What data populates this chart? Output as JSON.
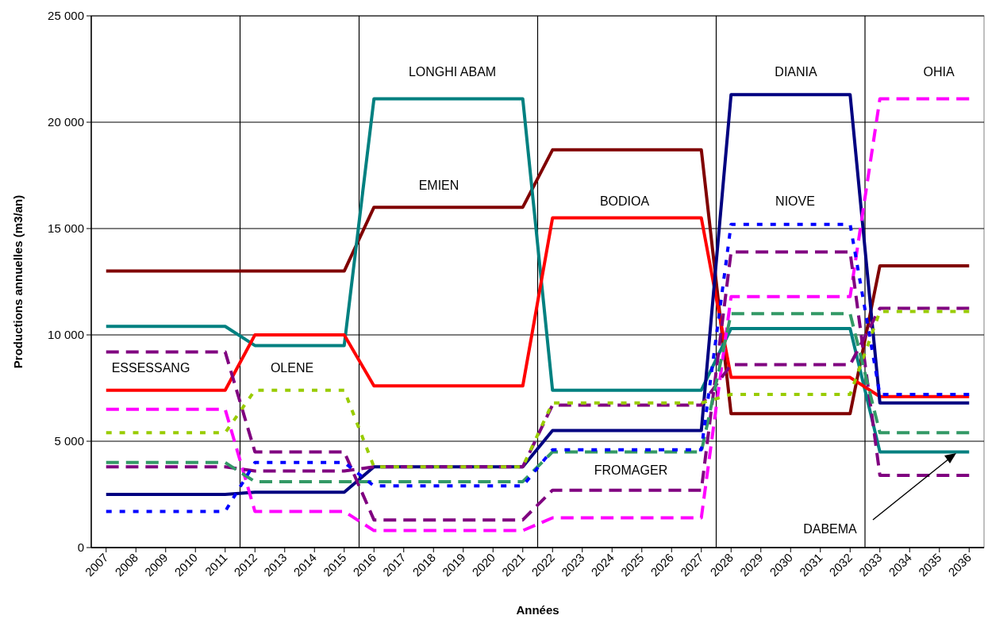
{
  "chart_data": {
    "type": "line",
    "xlabel": "Années",
    "ylabel": "Productions annuelles (m3/an)",
    "x": [
      2007,
      2008,
      2009,
      2010,
      2011,
      2012,
      2013,
      2014,
      2015,
      2016,
      2017,
      2018,
      2019,
      2020,
      2021,
      2022,
      2023,
      2024,
      2025,
      2026,
      2027,
      2028,
      2029,
      2030,
      2031,
      2032,
      2033,
      2034,
      2035,
      2036
    ],
    "xlim": [
      2006.5,
      2036.5
    ],
    "xticks": [
      2007,
      2008,
      2009,
      2010,
      2011,
      2012,
      2013,
      2014,
      2015,
      2016,
      2017,
      2018,
      2019,
      2020,
      2021,
      2022,
      2023,
      2024,
      2025,
      2026,
      2027,
      2028,
      2029,
      2030,
      2031,
      2032,
      2033,
      2034,
      2035,
      2036
    ],
    "ylim": [
      0,
      25000
    ],
    "yticks": [
      {
        "value": 0,
        "label": "0"
      },
      {
        "value": 5000,
        "label": "5 000"
      },
      {
        "value": 10000,
        "label": "10 000"
      },
      {
        "value": 15000,
        "label": "15 000"
      },
      {
        "value": 20000,
        "label": "20 000"
      },
      {
        "value": 25000,
        "label": "25 000"
      }
    ],
    "grid": "y",
    "marker": "none",
    "series": [
      {
        "color": "#800000",
        "line_style": "solid",
        "values": [
          13000,
          13000,
          13000,
          13000,
          13000,
          13000,
          13000,
          13000,
          13000,
          16000,
          16000,
          16000,
          16000,
          16000,
          16000,
          18700,
          18700,
          18700,
          18700,
          18700,
          18700,
          6300,
          6300,
          6300,
          6300,
          6300,
          13250,
          13250,
          13250,
          13250
        ]
      },
      {
        "color": "#008080",
        "line_style": "solid",
        "values": [
          10400,
          10400,
          10400,
          10400,
          10400,
          9500,
          9500,
          9500,
          9500,
          21100,
          21100,
          21100,
          21100,
          21100,
          21100,
          7400,
          7400,
          7400,
          7400,
          7400,
          7400,
          10300,
          10300,
          10300,
          10300,
          10300,
          4500,
          4500,
          4500,
          4500
        ]
      },
      {
        "color": "#ff0000",
        "line_style": "solid",
        "values": [
          7400,
          7400,
          7400,
          7400,
          7400,
          10000,
          10000,
          10000,
          10000,
          7600,
          7600,
          7600,
          7600,
          7600,
          7600,
          15500,
          15500,
          15500,
          15500,
          15500,
          15500,
          8000,
          8000,
          8000,
          8000,
          8000,
          7100,
          7100,
          7100,
          7100
        ]
      },
      {
        "color": "#000080",
        "line_style": "solid",
        "values": [
          2500,
          2500,
          2500,
          2500,
          2500,
          2600,
          2600,
          2600,
          2600,
          3800,
          3800,
          3800,
          3800,
          3800,
          3800,
          5500,
          5500,
          5500,
          5500,
          5500,
          5500,
          21300,
          21300,
          21300,
          21300,
          21300,
          6800,
          6800,
          6800,
          6800
        ]
      },
      {
        "color": "#ff00ff",
        "line_style": "dashed",
        "values": [
          6500,
          6500,
          6500,
          6500,
          6500,
          1700,
          1700,
          1700,
          1700,
          800,
          800,
          800,
          800,
          800,
          800,
          1400,
          1400,
          1400,
          1400,
          1400,
          1400,
          11800,
          11800,
          11800,
          11800,
          11800,
          21100,
          21100,
          21100,
          21100
        ]
      },
      {
        "color": "#800080",
        "line_style": "dashed",
        "values": [
          9200,
          9200,
          9200,
          9200,
          9200,
          4500,
          4500,
          4500,
          4500,
          1300,
          1300,
          1300,
          1300,
          1300,
          1300,
          2700,
          2700,
          2700,
          2700,
          2700,
          2700,
          13900,
          13900,
          13900,
          13900,
          13900,
          3400,
          3400,
          3400,
          3400
        ]
      },
      {
        "color": "#800080",
        "line_style": "dashed",
        "values": [
          3800,
          3800,
          3800,
          3800,
          3800,
          3600,
          3600,
          3600,
          3600,
          3800,
          3800,
          3800,
          3800,
          3800,
          3800,
          6700,
          6700,
          6700,
          6700,
          6700,
          6700,
          8600,
          8600,
          8600,
          8600,
          8600,
          11250,
          11250,
          11250,
          11250
        ]
      },
      {
        "color": "#99cc00",
        "line_style": "dotted",
        "values": [
          5400,
          5400,
          5400,
          5400,
          5400,
          7400,
          7400,
          7400,
          7400,
          3800,
          3800,
          3800,
          3800,
          3800,
          3800,
          6800,
          6800,
          6800,
          6800,
          6800,
          6800,
          7200,
          7200,
          7200,
          7200,
          7200,
          11100,
          11100,
          11100,
          11100
        ]
      },
      {
        "color": "#339966",
        "line_style": "dashed",
        "values": [
          4000,
          4000,
          4000,
          4000,
          4000,
          3100,
          3100,
          3100,
          3100,
          3100,
          3100,
          3100,
          3100,
          3100,
          3100,
          4500,
          4500,
          4500,
          4500,
          4500,
          4500,
          11000,
          11000,
          11000,
          11000,
          11000,
          5400,
          5400,
          5400,
          5400
        ]
      },
      {
        "color": "#0000ff",
        "line_style": "dotted",
        "values": [
          1700,
          1700,
          1700,
          1700,
          1700,
          4000,
          4000,
          4000,
          4000,
          2900,
          2900,
          2900,
          2900,
          2900,
          2900,
          4600,
          4600,
          4600,
          4600,
          4600,
          4600,
          15200,
          15200,
          15200,
          15200,
          15200,
          7200,
          7200,
          7200,
          7200
        ]
      }
    ],
    "ref_lines": [
      {
        "axis": "x",
        "value": 2011.5,
        "color": "#000000"
      },
      {
        "axis": "x",
        "value": 2015.5,
        "color": "#000000"
      },
      {
        "axis": "x",
        "value": 2021.5,
        "color": "#000000"
      },
      {
        "axis": "x",
        "value": 2027.5,
        "color": "#000000"
      },
      {
        "axis": "x",
        "value": 2032.5,
        "color": "#000000"
      }
    ],
    "annotations": [
      "ESSESSANG",
      "OLENE",
      "LONGHI ABAM",
      "EMIEN",
      "BODIOA",
      "FROMAGER",
      "DIANIA",
      "NIOVE",
      "OHIA",
      "DABEMA"
    ]
  }
}
